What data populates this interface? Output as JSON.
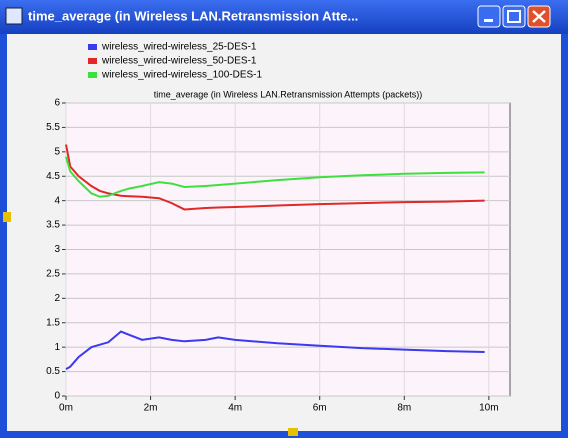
{
  "window_title": "time_average (in Wireless LAN.Retransmission Atte...",
  "chart_data": {
    "type": "line",
    "title": "time_average (in Wireless LAN.Retransmission Attempts (packets))",
    "x": [
      0,
      0.1,
      0.3,
      0.6,
      0.8,
      1,
      1.3,
      1.5,
      1.8,
      2.2,
      2.5,
      2.8,
      3.3,
      3.6,
      4,
      5,
      6,
      7,
      8,
      9,
      9.9
    ],
    "series": [
      {
        "name": "wireless_wired-wireless_25-DES-1",
        "color": "#3a3af0",
        "values": [
          0.55,
          0.6,
          0.8,
          1.0,
          1.05,
          1.1,
          1.32,
          1.25,
          1.15,
          1.2,
          1.15,
          1.12,
          1.15,
          1.2,
          1.15,
          1.08,
          1.03,
          0.98,
          0.95,
          0.92,
          0.9
        ]
      },
      {
        "name": "wireless_wired-wireless_50-DES-1",
        "color": "#e02828",
        "values": [
          5.15,
          4.7,
          4.5,
          4.3,
          4.2,
          4.15,
          4.1,
          4.09,
          4.08,
          4.05,
          3.95,
          3.82,
          3.85,
          3.86,
          3.87,
          3.9,
          3.93,
          3.95,
          3.97,
          3.98,
          4.0
        ]
      },
      {
        "name": "wireless_wired-wireless_100-DES-1",
        "color": "#3ee03e",
        "values": [
          4.9,
          4.6,
          4.4,
          4.15,
          4.08,
          4.1,
          4.2,
          4.25,
          4.3,
          4.38,
          4.35,
          4.28,
          4.3,
          4.32,
          4.35,
          4.42,
          4.48,
          4.52,
          4.55,
          4.57,
          4.58
        ]
      }
    ],
    "xlim": [
      0,
      10.5
    ],
    "xticks": [
      {
        "value": 0,
        "label": "0m"
      },
      {
        "value": 2,
        "label": "2m"
      },
      {
        "value": 4,
        "label": "4m"
      },
      {
        "value": 6,
        "label": "6m"
      },
      {
        "value": 8,
        "label": "8m"
      },
      {
        "value": 10,
        "label": "10m"
      }
    ],
    "ylim": [
      0,
      6
    ],
    "yticks": [
      0,
      0.5,
      1,
      1.5,
      2,
      2.5,
      3,
      3.5,
      4,
      4.5,
      5,
      5.5,
      6
    ],
    "grid": true
  }
}
